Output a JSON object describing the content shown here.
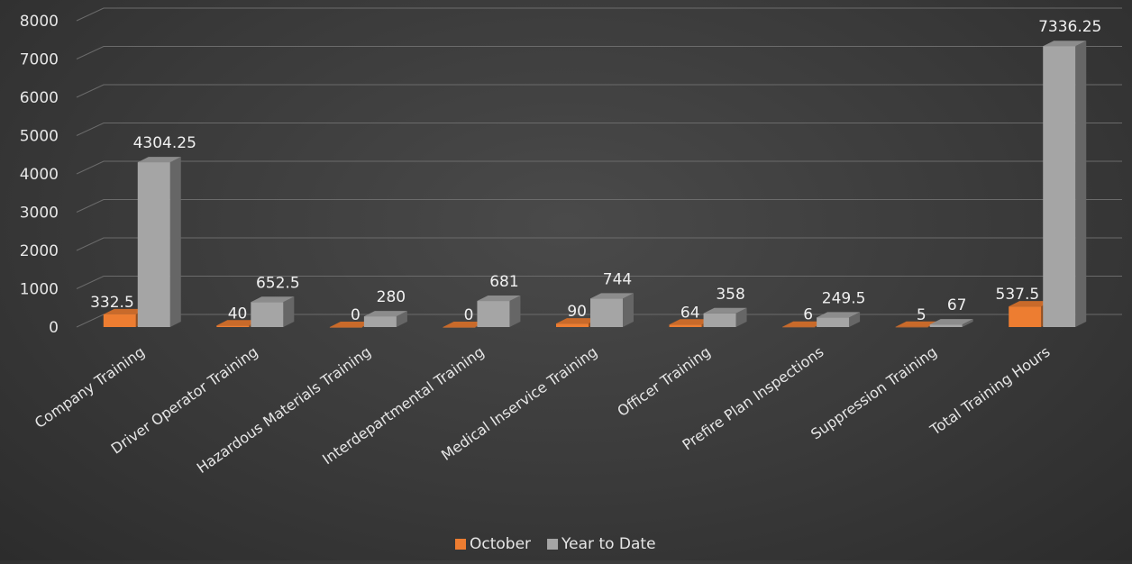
{
  "chart_data": {
    "type": "bar",
    "style": "3d-clustered-column",
    "categories": [
      "Company Training",
      "Driver Operator Training",
      "Hazardous Materials Training",
      "Interdepartmental Training",
      "Medical Inservice Training",
      "Officer Training",
      "Prefire Plan Inspections",
      "Suppression Training",
      "Total Training Hours"
    ],
    "series": [
      {
        "name": "October",
        "color": "#ed7d31",
        "values": [
          332.5,
          40,
          0,
          0,
          90,
          64,
          6,
          5,
          537.5
        ],
        "labels": [
          "332.5",
          "40",
          "0",
          "0",
          "90",
          "64",
          "6",
          "5",
          "537.5"
        ]
      },
      {
        "name": "Year to Date",
        "color": "#a5a5a5",
        "values": [
          4304.25,
          652.5,
          280,
          681,
          744,
          358,
          249.5,
          67,
          7336.25
        ],
        "labels": [
          "4304.25",
          "652.5",
          "280",
          "681",
          "744",
          "358",
          "249.5",
          "67",
          "7336.25"
        ]
      }
    ],
    "title": "",
    "xlabel": "",
    "ylabel": "",
    "ylim": [
      0,
      8000
    ],
    "yticks": [
      "0",
      "1000",
      "2000",
      "3000",
      "4000",
      "5000",
      "6000",
      "7000",
      "8000"
    ],
    "grid": true,
    "legend_position": "bottom"
  }
}
